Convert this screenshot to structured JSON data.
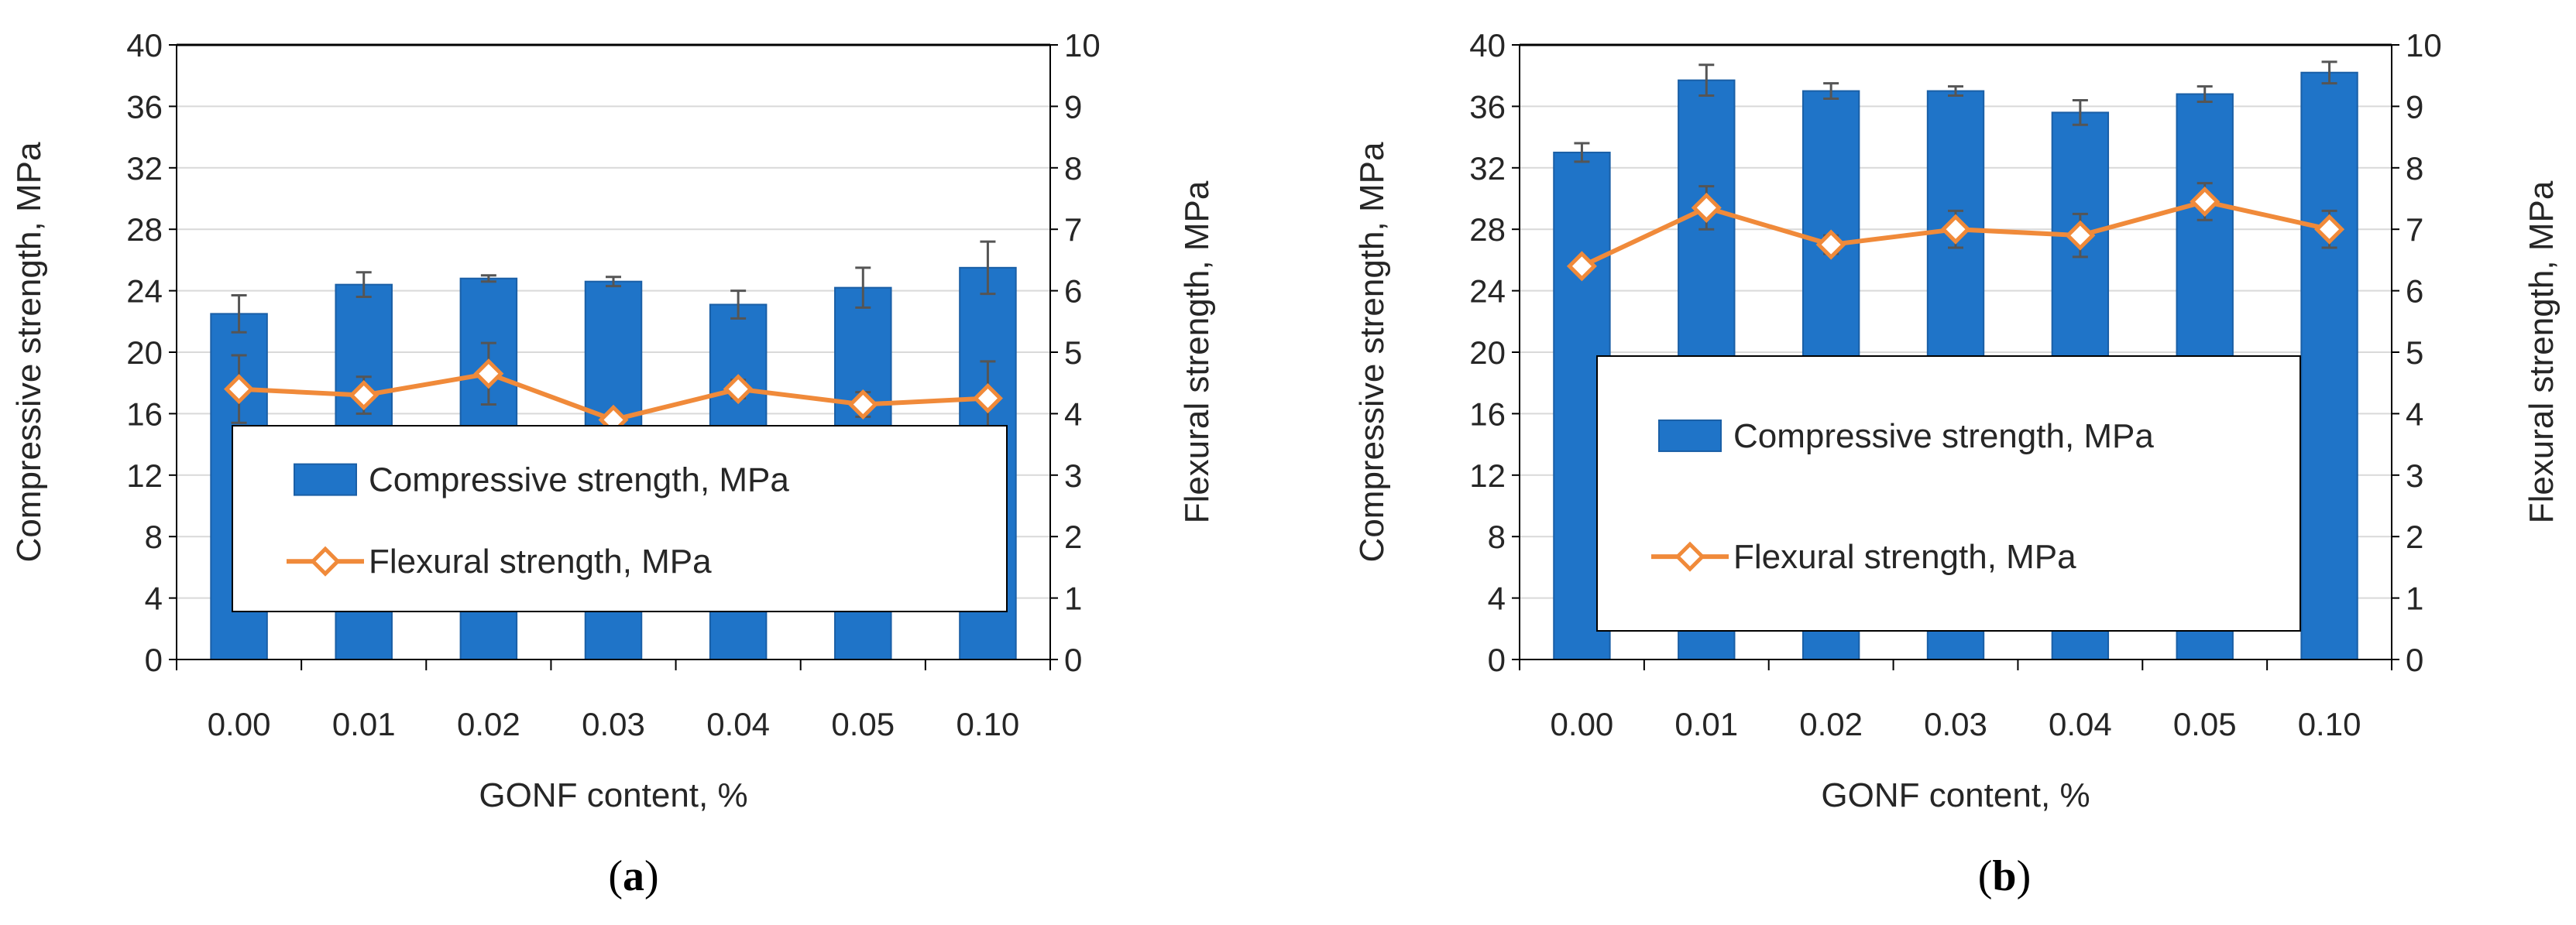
{
  "chart_data": [
    {
      "panel": "a",
      "type": "bar+line",
      "categories": [
        "0.00",
        "0.01",
        "0.02",
        "0.03",
        "0.04",
        "0.05",
        "0.10"
      ],
      "xlabel": "GONF content, %",
      "ylabel_left": "Compressive strength, MPa",
      "ylabel_right": "Flexural strength, MPa",
      "ylim_left": [
        0,
        40
      ],
      "ylim_right": [
        0,
        10
      ],
      "yticks_left": [
        0,
        4,
        8,
        12,
        16,
        20,
        24,
        28,
        32,
        36,
        40
      ],
      "yticks_right": [
        0,
        1,
        2,
        3,
        4,
        5,
        6,
        7,
        8,
        9,
        10
      ],
      "series": [
        {
          "name": "Compressive strength, MPa",
          "kind": "bar",
          "axis": "left",
          "values": [
            22.5,
            24.4,
            24.8,
            24.6,
            23.1,
            24.2,
            25.5
          ],
          "errors": [
            1.2,
            0.8,
            0.2,
            0.3,
            0.9,
            1.3,
            1.7
          ]
        },
        {
          "name": "Flexural strength, MPa",
          "kind": "line",
          "axis": "right",
          "values": [
            4.4,
            4.3,
            4.65,
            3.9,
            4.4,
            4.15,
            4.25
          ],
          "errors": [
            0.55,
            0.3,
            0.5,
            0.1,
            0.15,
            0.2,
            0.6
          ]
        }
      ],
      "legend": [
        "Compressive strength, MPa",
        "Flexural strength, MPa"
      ],
      "label": "(a)"
    },
    {
      "panel": "b",
      "type": "bar+line",
      "categories": [
        "0.00",
        "0.01",
        "0.02",
        "0.03",
        "0.04",
        "0.05",
        "0.10"
      ],
      "xlabel": "GONF content, %",
      "ylabel_left": "Compressive strength, MPa",
      "ylabel_right": "Flexural strength, MPa",
      "ylim_left": [
        0,
        40
      ],
      "ylim_right": [
        0,
        10
      ],
      "yticks_left": [
        0,
        4,
        8,
        12,
        16,
        20,
        24,
        28,
        32,
        36,
        40
      ],
      "yticks_right": [
        0,
        1,
        2,
        3,
        4,
        5,
        6,
        7,
        8,
        9,
        10
      ],
      "series": [
        {
          "name": "Compressive strength, MPa",
          "kind": "bar",
          "axis": "left",
          "values": [
            33.0,
            37.7,
            37.0,
            37.0,
            35.6,
            36.8,
            38.2
          ],
          "errors": [
            0.6,
            1.0,
            0.5,
            0.3,
            0.8,
            0.5,
            0.7
          ]
        },
        {
          "name": "Flexural strength, MPa",
          "kind": "line",
          "axis": "right",
          "values": [
            6.4,
            7.35,
            6.75,
            7.0,
            6.9,
            7.45,
            7.0
          ],
          "errors": [
            0.1,
            0.35,
            0.15,
            0.3,
            0.35,
            0.3,
            0.3
          ]
        }
      ],
      "legend": [
        "Compressive strength, MPa",
        "Flexural strength, MPa"
      ],
      "label": "(b)"
    }
  ],
  "colors": {
    "bar": "#1F74C8",
    "bar_stroke": "#1A5FA6",
    "line": "#F08A3A",
    "marker_fill": "#ffffff",
    "grid": "#D9D9D9",
    "axis": "#000000",
    "error": "#555555"
  }
}
